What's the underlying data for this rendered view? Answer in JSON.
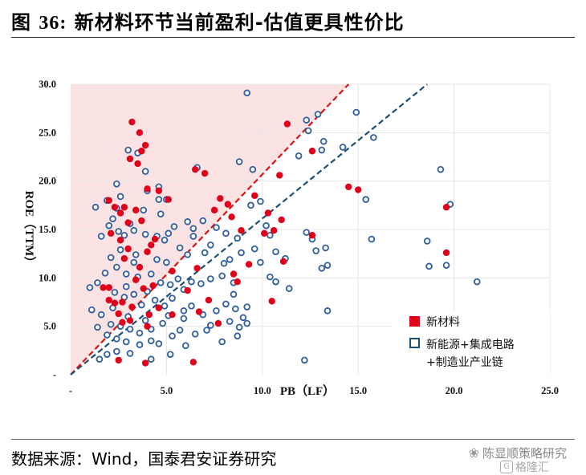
{
  "page": {
    "title_prefix": "图 ",
    "title_number": "36:",
    "title_text": " 新材料环节当前盈利-估值更具性价比",
    "source": "数据来源：Wind，国泰君安证券研究",
    "watermark": "陈显顺策略研究",
    "watermark2": "格隆汇"
  },
  "colors": {
    "new_material": "#e0001a",
    "other": "#2e5e9e",
    "shade": "#fbe3e3",
    "grid": "#e6e6e6"
  },
  "chart_data": {
    "type": "scatter",
    "title": "新材料环节当前盈利-估值更具性价比",
    "xlabel": "PB（LF）",
    "ylabel": "ROE（TTM）",
    "xlim": [
      0,
      25
    ],
    "ylim": [
      0,
      30
    ],
    "x_ticks": [
      "-",
      "5.0",
      "10.0",
      "15.0",
      "20.0",
      "25.0"
    ],
    "y_ticks": [
      "-",
      "5.0",
      "10.0",
      "15.0",
      "20.0",
      "25.0",
      "30.0"
    ],
    "legend_position": "bottom-right",
    "reference_lines": [
      {
        "name": "red-dashed",
        "from": [
          0,
          0
        ],
        "to": [
          14.5,
          30
        ],
        "color": "#d11"
      },
      {
        "name": "blue-dashed",
        "from": [
          0,
          0
        ],
        "to": [
          18.6,
          30
        ],
        "color": "#1d4f73"
      }
    ],
    "series": [
      {
        "name": "新材料",
        "marker": "filled",
        "points": [
          [
            3.2,
            26.1
          ],
          [
            3.6,
            25.0
          ],
          [
            3.9,
            23.7
          ],
          [
            3.7,
            23.1
          ],
          [
            3.1,
            22.3
          ],
          [
            3.5,
            21.8
          ],
          [
            6.5,
            21.2
          ],
          [
            7.0,
            20.8
          ],
          [
            2.0,
            18.0
          ],
          [
            2.3,
            17.3
          ],
          [
            2.8,
            17.3
          ],
          [
            2.6,
            16.7
          ],
          [
            3.4,
            17.0
          ],
          [
            4.0,
            19.2
          ],
          [
            4.6,
            19.0
          ],
          [
            5.1,
            18.1
          ],
          [
            7.8,
            18.2
          ],
          [
            8.2,
            17.6
          ],
          [
            7.5,
            17.0
          ],
          [
            8.4,
            16.3
          ],
          [
            3.7,
            15.9
          ],
          [
            3.0,
            15.7
          ],
          [
            2.1,
            14.6
          ],
          [
            2.6,
            13.9
          ],
          [
            4.4,
            14.0
          ],
          [
            3.0,
            13.0
          ],
          [
            4.0,
            12.7
          ],
          [
            4.2,
            13.4
          ],
          [
            2.8,
            12.0
          ],
          [
            3.6,
            11.1
          ],
          [
            6.6,
            11.0
          ],
          [
            5.3,
            10.7
          ],
          [
            1.7,
            9.0
          ],
          [
            2.0,
            9.0
          ],
          [
            3.4,
            9.8
          ],
          [
            3.8,
            8.9
          ],
          [
            4.3,
            9.2
          ],
          [
            6.1,
            8.7
          ],
          [
            8.7,
            9.6
          ],
          [
            2.0,
            7.7
          ],
          [
            2.3,
            7.4
          ],
          [
            2.7,
            7.5
          ],
          [
            3.2,
            7.0
          ],
          [
            2.5,
            6.3
          ],
          [
            4.1,
            6.2
          ],
          [
            4.6,
            6.9
          ],
          [
            5.3,
            6.2
          ],
          [
            2.7,
            5.4
          ],
          [
            3.1,
            5.6
          ],
          [
            4.0,
            5.0
          ],
          [
            7.2,
            7.7
          ],
          [
            6.7,
            6.5
          ],
          [
            7.7,
            5.3
          ],
          [
            8.5,
            10.4
          ],
          [
            9.3,
            11.4
          ],
          [
            8.9,
            14.9
          ],
          [
            9.6,
            18.5
          ],
          [
            10.1,
            14.6
          ],
          [
            10.6,
            14.9
          ],
          [
            10.3,
            16.7
          ],
          [
            11.0,
            16.0
          ],
          [
            10.9,
            20.6
          ],
          [
            11.3,
            25.9
          ],
          [
            11.1,
            11.7
          ],
          [
            10.5,
            7.6
          ],
          [
            6.4,
            1.3
          ],
          [
            3.9,
            1.2
          ],
          [
            2.5,
            1.5
          ],
          [
            14.5,
            19.4
          ],
          [
            12.6,
            23.1
          ],
          [
            15.0,
            19.1
          ],
          [
            12.6,
            14.4
          ],
          [
            19.6,
            17.3
          ],
          [
            19.6,
            12.6
          ]
        ]
      },
      {
        "name": "新能源+集成电路+制造业产业链",
        "marker": "hollow",
        "points": [
          [
            9.2,
            29.1
          ],
          [
            14.9,
            27.1
          ],
          [
            12.3,
            26.3
          ],
          [
            12.9,
            26.9
          ],
          [
            12.4,
            25.2
          ],
          [
            11.9,
            22.6
          ],
          [
            13.2,
            24.1
          ],
          [
            13.1,
            23.2
          ],
          [
            15.8,
            24.5
          ],
          [
            14.2,
            23.5
          ],
          [
            19.3,
            21.2
          ],
          [
            9.5,
            21.2
          ],
          [
            8.8,
            22.0
          ],
          [
            6.6,
            21.4
          ],
          [
            2.4,
            19.7
          ],
          [
            2.6,
            18.4
          ],
          [
            3.0,
            23.2
          ],
          [
            3.5,
            22.9
          ],
          [
            3.9,
            21.0
          ],
          [
            4.6,
            19.4
          ],
          [
            4.0,
            19.0
          ],
          [
            4.6,
            18.1
          ],
          [
            5.0,
            18.1
          ],
          [
            3.8,
            17.0
          ],
          [
            4.7,
            16.6
          ],
          [
            2.4,
            17.2
          ],
          [
            1.3,
            17.3
          ],
          [
            1.9,
            18.0
          ],
          [
            2.2,
            16.1
          ],
          [
            2.0,
            15.4
          ],
          [
            1.6,
            14.3
          ],
          [
            2.5,
            14.8
          ],
          [
            3.3,
            14.9
          ],
          [
            3.9,
            14.5
          ],
          [
            4.5,
            14.3
          ],
          [
            5.1,
            14.6
          ],
          [
            5.4,
            15.3
          ],
          [
            6.1,
            15.8
          ],
          [
            6.9,
            15.9
          ],
          [
            6.4,
            15.1
          ],
          [
            7.6,
            15.2
          ],
          [
            7.3,
            13.4
          ],
          [
            8.1,
            14.6
          ],
          [
            8.7,
            14.1
          ],
          [
            8.9,
            12.6
          ],
          [
            9.6,
            13.0
          ],
          [
            9.4,
            17.5
          ],
          [
            9.9,
            17.9
          ],
          [
            10.2,
            15.4
          ],
          [
            10.4,
            14.4
          ],
          [
            11.2,
            12.0
          ],
          [
            10.7,
            12.7
          ],
          [
            9.9,
            11.6
          ],
          [
            10.4,
            10.1
          ],
          [
            10.7,
            9.6
          ],
          [
            11.4,
            8.9
          ],
          [
            12.3,
            14.7
          ],
          [
            12.6,
            14.0
          ],
          [
            13.3,
            13.1
          ],
          [
            12.8,
            12.8
          ],
          [
            13.4,
            11.3
          ],
          [
            13.1,
            11.0
          ],
          [
            15.7,
            14.0
          ],
          [
            15.4,
            18.1
          ],
          [
            18.6,
            13.8
          ],
          [
            18.7,
            11.2
          ],
          [
            19.6,
            11.3
          ],
          [
            19.8,
            17.6
          ],
          [
            21.2,
            9.6
          ],
          [
            12.2,
            1.5
          ],
          [
            13.4,
            6.6
          ],
          [
            1.0,
            9.0
          ],
          [
            1.4,
            9.5
          ],
          [
            1.8,
            10.5
          ],
          [
            2.4,
            11.1
          ],
          [
            2.9,
            10.4
          ],
          [
            2.1,
            12.1
          ],
          [
            2.6,
            12.9
          ],
          [
            3.4,
            12.4
          ],
          [
            3.5,
            10.1
          ],
          [
            4.2,
            10.4
          ],
          [
            4.5,
            11.9
          ],
          [
            5.0,
            11.6
          ],
          [
            5.2,
            9.3
          ],
          [
            5.6,
            9.9
          ],
          [
            5.9,
            8.8
          ],
          [
            6.3,
            9.6
          ],
          [
            6.8,
            9.4
          ],
          [
            7.3,
            9.9
          ],
          [
            7.9,
            10.2
          ],
          [
            8.5,
            9.5
          ],
          [
            8.0,
            11.5
          ],
          [
            2.3,
            8.5
          ],
          [
            2.8,
            8.0
          ],
          [
            3.3,
            8.3
          ],
          [
            3.7,
            7.2
          ],
          [
            4.4,
            7.7
          ],
          [
            4.9,
            7.1
          ],
          [
            5.3,
            7.9
          ],
          [
            5.9,
            6.6
          ],
          [
            6.3,
            7.1
          ],
          [
            6.9,
            6.2
          ],
          [
            7.6,
            6.6
          ],
          [
            8.1,
            7.3
          ],
          [
            8.6,
            6.8
          ],
          [
            9.0,
            5.9
          ],
          [
            9.2,
            5.3
          ],
          [
            8.8,
            4.9
          ],
          [
            8.3,
            5.5
          ],
          [
            7.3,
            5.1
          ],
          [
            5.9,
            5.8
          ],
          [
            5.1,
            6.1
          ],
          [
            4.8,
            5.3
          ],
          [
            4.2,
            4.7
          ],
          [
            3.6,
            4.3
          ],
          [
            3.1,
            4.7
          ],
          [
            2.6,
            5.0
          ],
          [
            2.1,
            5.2
          ],
          [
            1.6,
            6.2
          ],
          [
            1.4,
            4.9
          ],
          [
            1.9,
            4.1
          ],
          [
            2.4,
            3.7
          ],
          [
            2.9,
            3.4
          ],
          [
            3.6,
            3.1
          ],
          [
            4.2,
            3.5
          ],
          [
            5.3,
            4.0
          ],
          [
            6.0,
            3.0
          ],
          [
            5.2,
            2.1
          ],
          [
            4.2,
            1.6
          ],
          [
            3.1,
            2.2
          ],
          [
            2.4,
            2.4
          ],
          [
            1.9,
            2.1
          ],
          [
            1.5,
            1.6
          ],
          [
            8.7,
            4.0
          ],
          [
            9.2,
            7.0
          ],
          [
            8.5,
            8.3
          ],
          [
            1.1,
            6.7
          ],
          [
            3.0,
            6.0
          ],
          [
            3.9,
            5.6
          ],
          [
            4.6,
            3.2
          ],
          [
            5.7,
            4.6
          ],
          [
            6.5,
            4.2
          ],
          [
            7.1,
            4.6
          ],
          [
            7.9,
            3.4
          ],
          [
            2.2,
            6.9
          ],
          [
            2.9,
            9.1
          ],
          [
            4.0,
            8.6
          ],
          [
            4.7,
            9.5
          ],
          [
            3.3,
            11.6
          ],
          [
            5.7,
            13.1
          ],
          [
            6.1,
            12.4
          ],
          [
            7.0,
            12.6
          ],
          [
            8.3,
            11.9
          ],
          [
            3.1,
            15.6
          ],
          [
            2.8,
            14.4
          ],
          [
            4.9,
            13.9
          ],
          [
            6.4,
            14.3
          ]
        ]
      }
    ],
    "legend": [
      {
        "label": "新材料"
      },
      {
        "label_line1": "新能源+集成电路",
        "label_line2": "+制造业产业链"
      }
    ]
  }
}
